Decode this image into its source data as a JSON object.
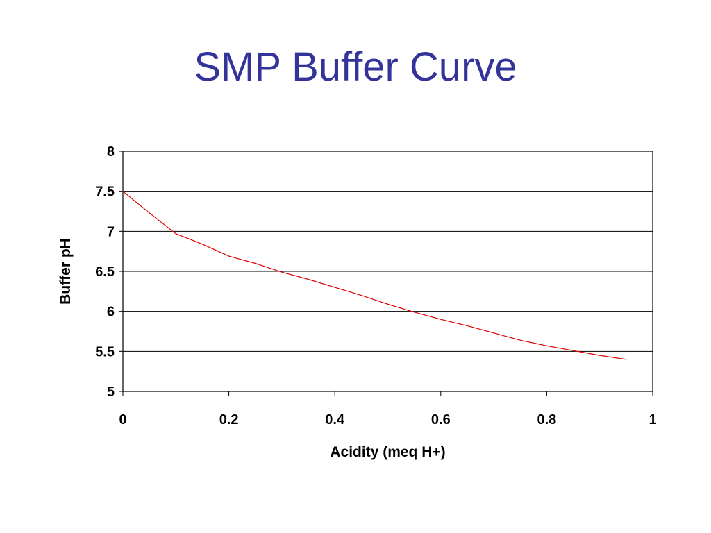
{
  "slide": {
    "title": "SMP Buffer Curve"
  },
  "chart_data": {
    "type": "line",
    "title": "",
    "xlabel": "Acidity (meq H+)",
    "ylabel": "Buffer pH",
    "xlim": [
      0,
      1
    ],
    "ylim": [
      5,
      8
    ],
    "xticks": [
      "0",
      "0.2",
      "0.4",
      "0.6",
      "0.8",
      "1"
    ],
    "yticks": [
      "5",
      "5.5",
      "6",
      "6.5",
      "7",
      "7.5",
      "8"
    ],
    "grid": "horizontal",
    "legend": "none",
    "series": [
      {
        "color": "#dd0000",
        "x": [
          0,
          0.05,
          0.1,
          0.15,
          0.2,
          0.25,
          0.3,
          0.35,
          0.4,
          0.45,
          0.5,
          0.55,
          0.6,
          0.65,
          0.7,
          0.75,
          0.8,
          0.85,
          0.9,
          0.95
        ],
        "y": [
          7.5,
          7.23,
          6.97,
          6.84,
          6.69,
          6.6,
          6.49,
          6.4,
          6.3,
          6.2,
          6.09,
          5.99,
          5.9,
          5.82,
          5.73,
          5.64,
          5.57,
          5.51,
          5.45,
          5.4
        ]
      }
    ]
  }
}
